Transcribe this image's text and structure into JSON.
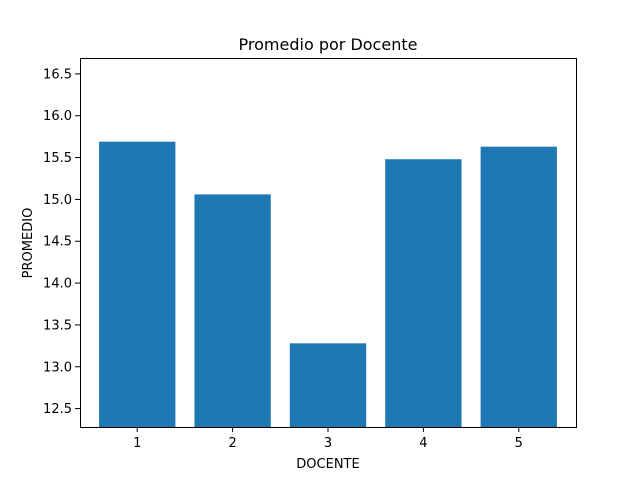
{
  "chart_data": {
    "type": "bar",
    "title": "Promedio por Docente",
    "xlabel": "DOCENTE",
    "ylabel": "PROMEDIO",
    "categories": [
      "1",
      "2",
      "3",
      "4",
      "5"
    ],
    "values": [
      15.69,
      15.06,
      13.28,
      15.48,
      15.63
    ],
    "ylim": [
      12.28,
      16.69
    ],
    "yticks": [
      "12.5",
      "13.0",
      "13.5",
      "14.0",
      "14.5",
      "15.0",
      "15.5",
      "16.0",
      "16.5"
    ],
    "bar_color": "#1f77b4",
    "grid": false,
    "legend": "none"
  }
}
